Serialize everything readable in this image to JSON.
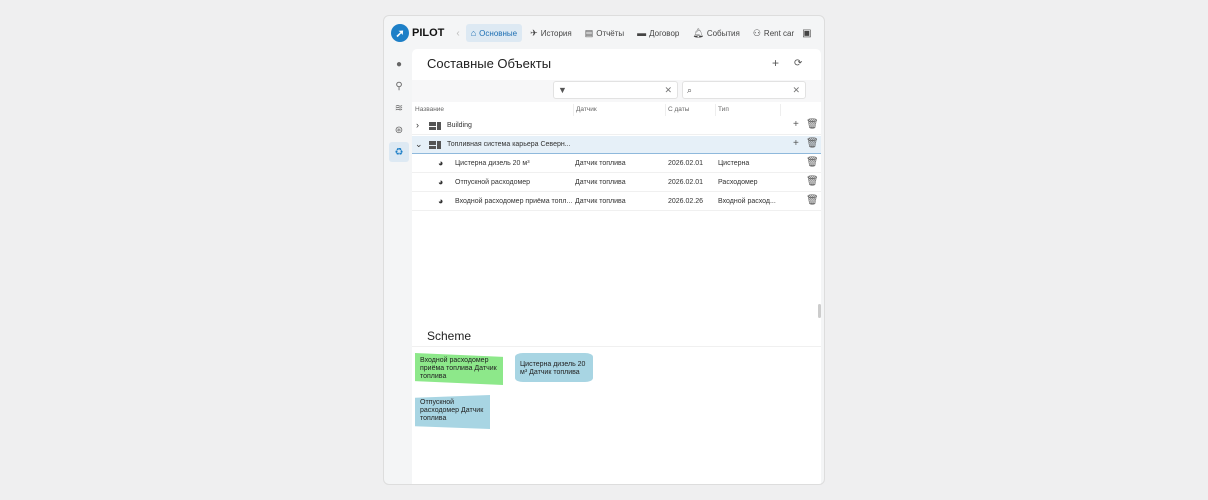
{
  "brand": {
    "logo_text": "PILOT"
  },
  "nav": [
    {
      "label": "Основные",
      "icon": "home-icon",
      "active": true
    },
    {
      "label": "История",
      "icon": "history-route-icon"
    },
    {
      "label": "Отчёты",
      "icon": "report-icon"
    },
    {
      "label": "Договор",
      "icon": "contract-icon"
    },
    {
      "label": "События",
      "icon": "bell-icon"
    },
    {
      "label": "Rent car",
      "icon": "car-rent-icon"
    }
  ],
  "panel": {
    "title": "Составные Объекты"
  },
  "table": {
    "headers": [
      "Название",
      "Датчик",
      "С даты",
      "Тип"
    ],
    "groups": [
      {
        "name": "Building",
        "expanded": false
      },
      {
        "name": "Топливная система карьера Северн...",
        "expanded": true
      }
    ],
    "rows": [
      {
        "name": "Цистерна дизель 20 м³",
        "sensor": "Датчик топлива",
        "date": "2026.02.01",
        "type": "Цистерна"
      },
      {
        "name": "Отпускной расходомер",
        "sensor": "Датчик топлива",
        "date": "2026.02.01",
        "type": "Расходомер"
      },
      {
        "name": "Входной расходомер приёма топл...",
        "sensor": "Датчик топлива",
        "date": "2026.02.26",
        "type": "Входной расход..."
      }
    ]
  },
  "scheme": {
    "title": "Scheme",
    "nodes": [
      {
        "label": "Входной расходомер приёма топлива Датчик топлива",
        "color": "#8de88a"
      },
      {
        "label": "Цистерна дизель 20 м³ Датчик топлива",
        "color": "#a8d5e3"
      },
      {
        "label": "Отпускной расходомер Датчик топлива",
        "color": "#a8d5e3"
      }
    ]
  }
}
